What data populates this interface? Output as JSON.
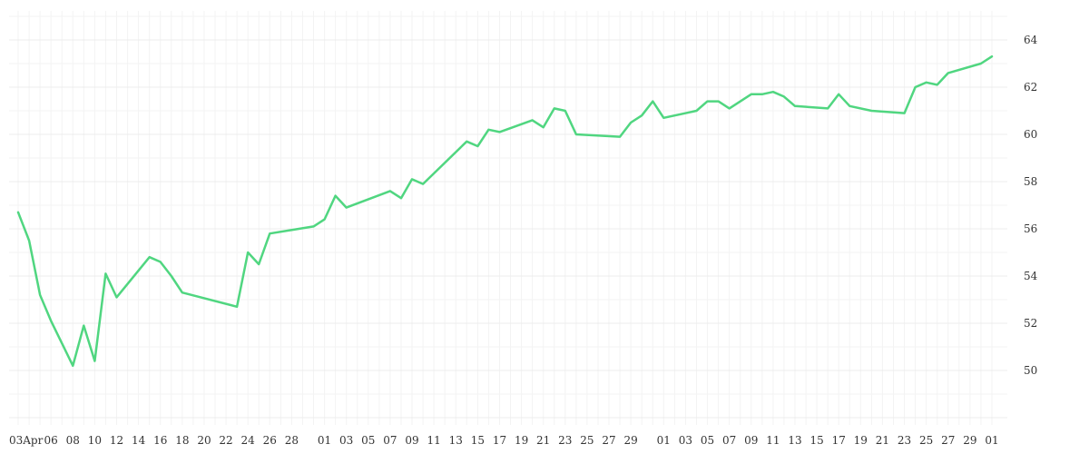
{
  "chart_data": {
    "type": "line",
    "title": "",
    "xlabel": "",
    "ylabel": "",
    "grid": true,
    "y_axis_side": "right",
    "ylim": [
      48,
      65
    ],
    "yticks": [
      50,
      52,
      54,
      56,
      58,
      60,
      62,
      64
    ],
    "color": "#50d680",
    "x_tick_labels": [
      "03Apr",
      "06",
      "08",
      "10",
      "12",
      "14",
      "16",
      "18",
      "20",
      "22",
      "24",
      "26",
      "28",
      "01",
      "03",
      "05",
      "07",
      "09",
      "11",
      "13",
      "15",
      "17",
      "19",
      "21",
      "23",
      "25",
      "27",
      "29",
      "01",
      "03",
      "05",
      "07",
      "09",
      "11",
      "13",
      "15",
      "17",
      "19",
      "21",
      "23",
      "25",
      "27",
      "29",
      "01"
    ],
    "x": [
      "2023-04-03",
      "2023-04-04",
      "2023-04-05",
      "2023-04-06",
      "2023-04-08",
      "2023-04-09",
      "2023-04-10",
      "2023-04-11",
      "2023-04-12",
      "2023-04-15",
      "2023-04-16",
      "2023-04-17",
      "2023-04-18",
      "2023-04-23",
      "2023-04-24",
      "2023-04-25",
      "2023-04-26",
      "2023-04-30",
      "2023-05-01",
      "2023-05-02",
      "2023-05-03",
      "2023-05-07",
      "2023-05-08",
      "2023-05-09",
      "2023-05-10",
      "2023-05-14",
      "2023-05-15",
      "2023-05-16",
      "2023-05-17",
      "2023-05-20",
      "2023-05-21",
      "2023-05-22",
      "2023-05-23",
      "2023-05-24",
      "2023-05-28",
      "2023-05-29",
      "2023-05-30",
      "2023-05-31",
      "2023-06-01",
      "2023-06-04",
      "2023-06-05",
      "2023-06-06",
      "2023-06-07",
      "2023-06-09",
      "2023-06-10",
      "2023-06-11",
      "2023-06-12",
      "2023-06-13",
      "2023-06-16",
      "2023-06-17",
      "2023-06-18",
      "2023-06-20",
      "2023-06-23",
      "2023-06-24",
      "2023-06-25",
      "2023-06-26",
      "2023-06-27",
      "2023-06-30",
      "2023-07-01"
    ],
    "series": [
      {
        "values": [
          56.7,
          55.5,
          53.2,
          52.1,
          50.2,
          51.9,
          50.4,
          54.1,
          53.1,
          54.8,
          54.6,
          54.0,
          53.3,
          52.7,
          55.0,
          54.5,
          55.8,
          56.1,
          56.4,
          57.4,
          56.9,
          57.6,
          57.3,
          58.1,
          57.9,
          59.7,
          59.5,
          60.2,
          60.1,
          60.6,
          60.3,
          61.1,
          61.0,
          60.0,
          59.9,
          60.5,
          60.8,
          61.4,
          60.7,
          61.0,
          61.4,
          61.4,
          61.1,
          61.7,
          61.7,
          61.8,
          61.6,
          61.2,
          61.1,
          61.7,
          61.2,
          61.0,
          60.9,
          62.0,
          62.2,
          62.1,
          62.6,
          63.0,
          63.3
        ]
      }
    ]
  }
}
